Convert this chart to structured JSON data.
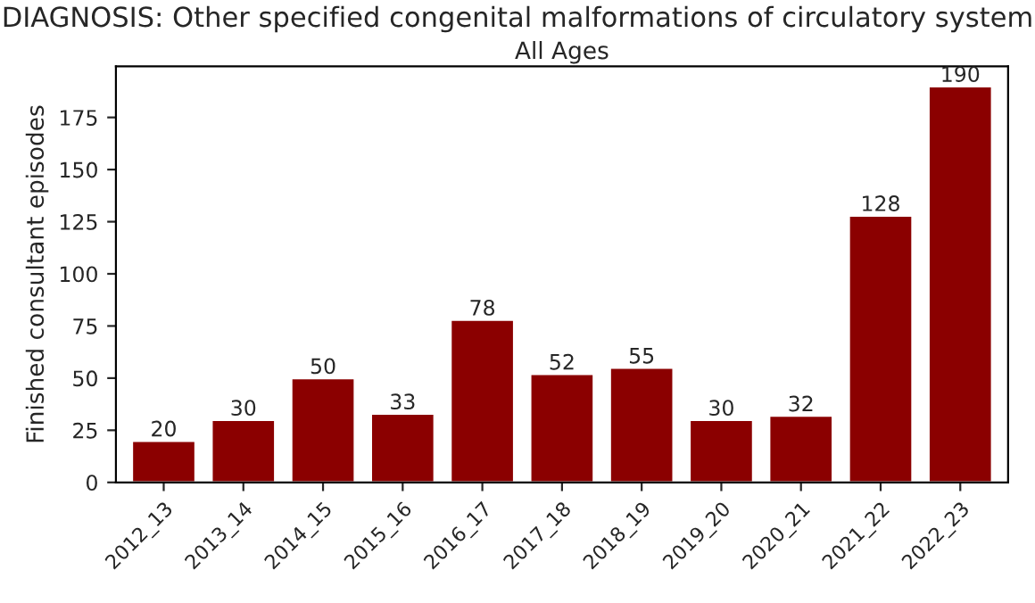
{
  "chart_data": {
    "type": "bar",
    "title": "DIAGNOSIS: Other specified congenital malformations of circulatory system",
    "subtitle": "All Ages",
    "ylabel": "Finished consultant episodes",
    "categories": [
      "2012_13",
      "2013_14",
      "2014_15",
      "2015_16",
      "2016_17",
      "2017_18",
      "2018_19",
      "2019_20",
      "2020_21",
      "2021_22",
      "2022_23"
    ],
    "values": [
      20,
      30,
      50,
      33,
      78,
      52,
      55,
      30,
      32,
      128,
      190
    ],
    "color": "#8b0000",
    "ylim": [
      0,
      199.5
    ],
    "yticks": [
      0,
      25,
      50,
      75,
      100,
      125,
      150,
      175
    ],
    "data_labels": true,
    "grid": false
  }
}
